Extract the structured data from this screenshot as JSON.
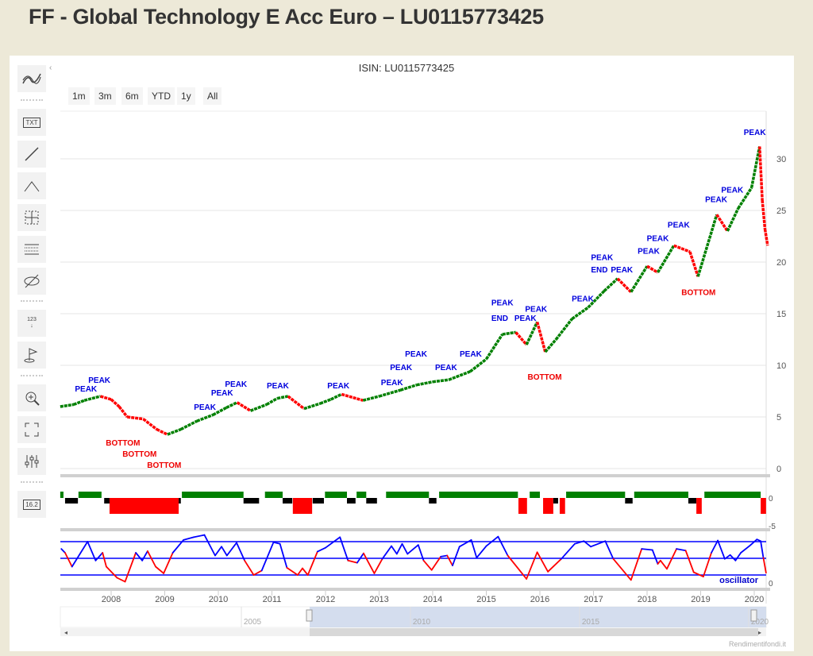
{
  "page": {
    "title": "FF - Global Technology E Acc Euro – LU0115773425"
  },
  "chart": {
    "isin_label": "ISIN: LU0115773425",
    "credits": "Rendimentifondi.it"
  },
  "range_selector": [
    "1m",
    "3m",
    "6m",
    "YTD",
    "1y",
    "All"
  ],
  "toolbar": [
    "simple-indicators-icon",
    "text-annotation-icon",
    "line-icon",
    "fibonacci-icon",
    "crosshair-icon",
    "measure-icon",
    "hide-icon",
    "label-123-icon",
    "flag-icon",
    "zoom-in-icon",
    "fullscreen-icon",
    "indicators-settings-icon",
    "current-price-icon"
  ],
  "toolbar_labels": {
    "text": "TXT",
    "price": "16.2",
    "numbers": "123"
  },
  "colors": {
    "up": "#008000",
    "down": "#ff0000",
    "neutral": "#000000",
    "oscillator_up": "#0000ff",
    "oscillator_down": "#ff0000",
    "navigator": "#c9d5ea",
    "background": "#ede9d8"
  },
  "chart_data": {
    "type": "candlestick",
    "x_ticks": [
      "2008",
      "2009",
      "2010",
      "2011",
      "2012",
      "2013",
      "2014",
      "2015",
      "2016",
      "2017",
      "2018",
      "2019",
      "2020"
    ],
    "y_ticks": [
      "0",
      "5",
      "10",
      "15",
      "20",
      "25",
      "30"
    ],
    "ylim": [
      0,
      35
    ],
    "xlim": [
      2007.05,
      2020.25
    ],
    "price": [
      [
        2007.05,
        6
      ],
      [
        2007.3,
        6.2
      ],
      [
        2007.5,
        6.6
      ],
      [
        2007.8,
        7.0
      ],
      [
        2008.0,
        6.7
      ],
      [
        2008.15,
        6.0
      ],
      [
        2008.3,
        5.0
      ],
      [
        2008.6,
        4.8
      ],
      [
        2008.85,
        3.8
      ],
      [
        2009.05,
        3.3
      ],
      [
        2009.3,
        3.8
      ],
      [
        2009.6,
        4.6
      ],
      [
        2009.9,
        5.2
      ],
      [
        2010.15,
        5.9
      ],
      [
        2010.35,
        6.4
      ],
      [
        2010.6,
        5.6
      ],
      [
        2010.9,
        6.2
      ],
      [
        2011.1,
        6.8
      ],
      [
        2011.3,
        7.0
      ],
      [
        2011.6,
        5.8
      ],
      [
        2011.9,
        6.3
      ],
      [
        2012.1,
        6.7
      ],
      [
        2012.3,
        7.2
      ],
      [
        2012.7,
        6.6
      ],
      [
        2013.0,
        7.0
      ],
      [
        2013.4,
        7.6
      ],
      [
        2013.7,
        8.1
      ],
      [
        2014.0,
        8.4
      ],
      [
        2014.3,
        8.6
      ],
      [
        2014.7,
        9.4
      ],
      [
        2015.0,
        10.6
      ],
      [
        2015.3,
        13.0
      ],
      [
        2015.55,
        13.2
      ],
      [
        2015.75,
        12.0
      ],
      [
        2015.95,
        14.2
      ],
      [
        2016.1,
        11.3
      ],
      [
        2016.3,
        12.5
      ],
      [
        2016.6,
        14.5
      ],
      [
        2016.9,
        15.6
      ],
      [
        2017.2,
        17.2
      ],
      [
        2017.45,
        18.4
      ],
      [
        2017.7,
        17.1
      ],
      [
        2018.0,
        19.6
      ],
      [
        2018.2,
        19.0
      ],
      [
        2018.5,
        21.6
      ],
      [
        2018.8,
        21.0
      ],
      [
        2018.95,
        18.6
      ],
      [
        2019.3,
        24.6
      ],
      [
        2019.5,
        23.0
      ],
      [
        2019.7,
        25.2
      ],
      [
        2019.95,
        27.2
      ],
      [
        2020.1,
        31.2
      ],
      [
        2020.15,
        26.0
      ],
      [
        2020.2,
        23.2
      ],
      [
        2020.25,
        21.6
      ]
    ],
    "annotations": [
      {
        "text": "PEAK",
        "x": 2007.53,
        "y": 7.46,
        "type": "peak"
      },
      {
        "text": "PEAK",
        "x": 2007.78,
        "y": 7.46,
        "type": "peak"
      },
      {
        "text": "BOTTOM",
        "x": 2008.22,
        "y": 2.23,
        "type": "bottom"
      },
      {
        "text": "BOTTOM",
        "x": 2008.53,
        "y": 2.0,
        "type": "bottom"
      },
      {
        "text": "BOTTOM",
        "x": 2008.99,
        "y": 0.92,
        "type": "bottom"
      },
      {
        "text": "PEAK",
        "x": 2009.75,
        "y": 5.69,
        "type": "peak"
      },
      {
        "text": "PEAK",
        "x": 2010.07,
        "y": 6.23,
        "type": "peak"
      },
      {
        "text": "PEAK",
        "x": 2010.33,
        "y": 7.08,
        "type": "peak"
      },
      {
        "text": "PEAK",
        "x": 2011.11,
        "y": 7.77,
        "type": "peak"
      },
      {
        "text": "PEAK",
        "x": 2012.24,
        "y": 7.77,
        "type": "peak"
      },
      {
        "text": "PEAK",
        "x": 2013.24,
        "y": 8.08,
        "type": "peak"
      },
      {
        "text": "PEAK",
        "x": 2013.41,
        "y": 8.69,
        "type": "peak"
      },
      {
        "text": "PEAK",
        "x": 2013.69,
        "y": 9.15,
        "type": "peak"
      },
      {
        "text": "PEAK",
        "x": 2014.25,
        "y": 9.54,
        "type": "peak"
      },
      {
        "text": "PEAK",
        "x": 2014.71,
        "y": 10.85,
        "type": "peak"
      },
      {
        "text": "END",
        "x": 2015.25,
        "y": 14.3,
        "type": "peak"
      },
      {
        "text": "PEAK",
        "x": 2015.3,
        "y": 14.1,
        "type": "peak"
      },
      {
        "text": "PEAK",
        "x": 2015.73,
        "y": 14.3,
        "type": "peak"
      },
      {
        "text": "PEAK",
        "x": 2015.93,
        "y": 15.2,
        "type": "peak"
      },
      {
        "text": "BOTTOM",
        "x": 2016.09,
        "y": 8.6,
        "type": "bottom"
      },
      {
        "text": "PEAK",
        "x": 2016.8,
        "y": 16.2,
        "type": "peak"
      },
      {
        "text": "END",
        "x": 2017.11,
        "y": 19.0,
        "type": "peak"
      },
      {
        "text": "PEAK",
        "x": 2017.16,
        "y": 18.5,
        "type": "peak"
      },
      {
        "text": "PEAK",
        "x": 2017.53,
        "y": 19.0,
        "type": "peak"
      },
      {
        "text": "PEAK",
        "x": 2018.03,
        "y": 20.8,
        "type": "peak"
      },
      {
        "text": "PEAK",
        "x": 2018.2,
        "y": 21.2,
        "type": "peak"
      },
      {
        "text": "PEAK",
        "x": 2018.59,
        "y": 22.5,
        "type": "peak"
      },
      {
        "text": "BOTTOM",
        "x": 2018.96,
        "y": 16.8,
        "type": "bottom"
      },
      {
        "text": "PEAK",
        "x": 2019.29,
        "y": 25.8,
        "type": "peak"
      },
      {
        "text": "PEAK",
        "x": 2019.59,
        "y": 25.9,
        "type": "peak"
      },
      {
        "text": "PEAK",
        "x": 2020.01,
        "y": 32.3,
        "type": "peak"
      }
    ],
    "trend": {
      "y_ticks": [
        "0",
        "-5"
      ],
      "segments": [
        [
          2007.05,
          2007.11,
          "up"
        ],
        [
          2007.14,
          2007.38,
          "neutral"
        ],
        [
          2007.39,
          2007.82,
          "up"
        ],
        [
          2007.87,
          2007.97,
          "neutral"
        ],
        [
          2007.97,
          2009.26,
          "down"
        ],
        [
          2009.26,
          2009.3,
          "neutral"
        ],
        [
          2009.32,
          2010.47,
          "up"
        ],
        [
          2010.47,
          2010.76,
          "neutral"
        ],
        [
          2010.87,
          2011.2,
          "up"
        ],
        [
          2011.2,
          2011.38,
          "neutral"
        ],
        [
          2011.39,
          2011.75,
          "down"
        ],
        [
          2011.76,
          2011.97,
          "neutral"
        ],
        [
          2011.99,
          2012.4,
          "up"
        ],
        [
          2012.4,
          2012.56,
          "neutral"
        ],
        [
          2012.58,
          2012.76,
          "up"
        ],
        [
          2012.76,
          2012.96,
          "neutral"
        ],
        [
          2013.13,
          2013.93,
          "up"
        ],
        [
          2013.93,
          2014.07,
          "neutral"
        ],
        [
          2014.12,
          2015.59,
          "up"
        ],
        [
          2015.6,
          2015.76,
          "down"
        ],
        [
          2015.81,
          2016.0,
          "up"
        ],
        [
          2016.06,
          2016.25,
          "down"
        ],
        [
          2016.25,
          2016.34,
          "neutral"
        ],
        [
          2016.37,
          2016.47,
          "down"
        ],
        [
          2016.49,
          2017.59,
          "up"
        ],
        [
          2017.59,
          2017.73,
          "neutral"
        ],
        [
          2017.76,
          2018.77,
          "up"
        ],
        [
          2018.77,
          2018.92,
          "neutral"
        ],
        [
          2018.92,
          2019.02,
          "down"
        ],
        [
          2019.07,
          2020.12,
          "up"
        ],
        [
          2020.12,
          2020.22,
          "down"
        ]
      ]
    },
    "oscillator": {
      "label": "oscillator",
      "y_ticks": [
        "0"
      ],
      "levels": [
        80,
        50,
        20
      ],
      "ylim": [
        0,
        100
      ],
      "values": [
        [
          2007.07,
          67
        ],
        [
          2007.14,
          60
        ],
        [
          2007.27,
          35
        ],
        [
          2007.56,
          80
        ],
        [
          2007.71,
          46
        ],
        [
          2007.84,
          60
        ],
        [
          2007.91,
          35
        ],
        [
          2008.11,
          15
        ],
        [
          2008.26,
          8
        ],
        [
          2008.46,
          60
        ],
        [
          2008.58,
          46
        ],
        [
          2008.68,
          63
        ],
        [
          2008.83,
          35
        ],
        [
          2008.98,
          23
        ],
        [
          2009.15,
          60
        ],
        [
          2009.35,
          83
        ],
        [
          2009.54,
          88
        ],
        [
          2009.74,
          92
        ],
        [
          2009.94,
          55
        ],
        [
          2010.06,
          71
        ],
        [
          2010.16,
          55
        ],
        [
          2010.34,
          78
        ],
        [
          2010.49,
          46
        ],
        [
          2010.66,
          20
        ],
        [
          2010.81,
          28
        ],
        [
          2011.03,
          79
        ],
        [
          2011.15,
          76
        ],
        [
          2011.28,
          33
        ],
        [
          2011.48,
          20
        ],
        [
          2011.57,
          32
        ],
        [
          2011.67,
          20
        ],
        [
          2011.85,
          62
        ],
        [
          2012.0,
          69
        ],
        [
          2012.27,
          88
        ],
        [
          2012.42,
          46
        ],
        [
          2012.59,
          42
        ],
        [
          2012.71,
          59
        ],
        [
          2012.91,
          23
        ],
        [
          2013.06,
          49
        ],
        [
          2013.23,
          72
        ],
        [
          2013.33,
          58
        ],
        [
          2013.43,
          76
        ],
        [
          2013.53,
          58
        ],
        [
          2013.73,
          74
        ],
        [
          2013.83,
          46
        ],
        [
          2013.98,
          29
        ],
        [
          2014.15,
          53
        ],
        [
          2014.27,
          55
        ],
        [
          2014.37,
          37
        ],
        [
          2014.5,
          71
        ],
        [
          2014.72,
          83
        ],
        [
          2014.82,
          51
        ],
        [
          2015.0,
          72
        ],
        [
          2015.22,
          89
        ],
        [
          2015.4,
          55
        ],
        [
          2015.75,
          13
        ],
        [
          2015.95,
          61
        ],
        [
          2016.15,
          26
        ],
        [
          2016.4,
          49
        ],
        [
          2016.65,
          76
        ],
        [
          2016.82,
          81
        ],
        [
          2016.95,
          71
        ],
        [
          2017.22,
          81
        ],
        [
          2017.37,
          49
        ],
        [
          2017.7,
          11
        ],
        [
          2017.9,
          67
        ],
        [
          2018.1,
          65
        ],
        [
          2018.2,
          40
        ],
        [
          2018.25,
          46
        ],
        [
          2018.37,
          31
        ],
        [
          2018.55,
          67
        ],
        [
          2018.72,
          64
        ],
        [
          2018.87,
          25
        ],
        [
          2019.05,
          17
        ],
        [
          2019.2,
          60
        ],
        [
          2019.32,
          82
        ],
        [
          2019.45,
          49
        ],
        [
          2019.55,
          56
        ],
        [
          2019.65,
          46
        ],
        [
          2019.75,
          60
        ],
        [
          2019.92,
          73
        ],
        [
          2020.05,
          84
        ],
        [
          2020.12,
          81
        ],
        [
          2020.17,
          51
        ],
        [
          2020.22,
          24
        ]
      ]
    },
    "navigator": {
      "x_ticks": [
        "2005",
        "2010",
        "2015",
        "2020"
      ],
      "selected_range": [
        2007.05,
        2020.25
      ]
    }
  }
}
